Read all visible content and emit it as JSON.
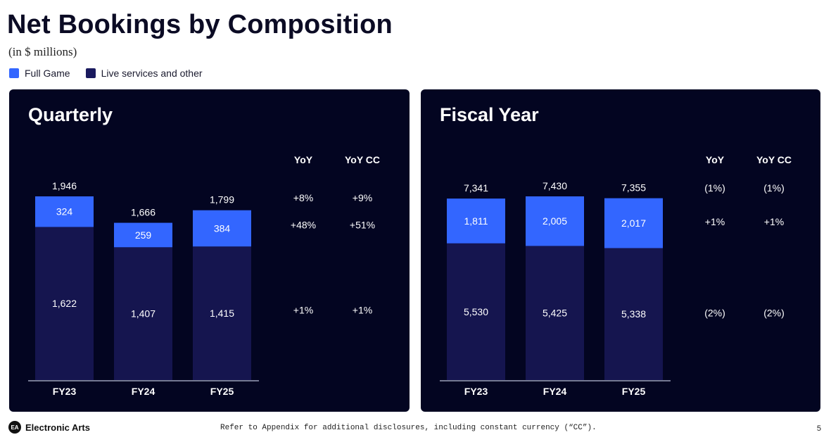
{
  "header": {
    "title": "Net Bookings by Composition",
    "subtitle": "(in $ millions)"
  },
  "legend": [
    {
      "label": "Full Game",
      "color": "#3366ff"
    },
    {
      "label": "Live services and other",
      "color": "#1a1a5e"
    }
  ],
  "colors": {
    "full_game": "#3366ff",
    "live_services": "#15154f",
    "panel_bg": "#030521",
    "text": "#ffffff"
  },
  "chart_data": [
    {
      "type": "bar",
      "stacked": true,
      "title": "Quarterly",
      "categories": [
        "FY23",
        "FY24",
        "FY25"
      ],
      "series": [
        {
          "name": "Live services and other",
          "values": [
            1622,
            1407,
            1415
          ],
          "labels": [
            "1,622",
            "1,407",
            "1,415"
          ]
        },
        {
          "name": "Full Game",
          "values": [
            324,
            259,
            384
          ],
          "labels": [
            "324",
            "259",
            "384"
          ]
        }
      ],
      "totals": [
        1946,
        1666,
        1799
      ],
      "total_labels": [
        "1,946",
        "1,666",
        "1,799"
      ],
      "ylim": [
        0,
        1946
      ],
      "yoy_header": "YoY",
      "yoycc_header": "YoY CC",
      "yoy": {
        "total": "+8%",
        "full_game": "+48%",
        "live_services": "+1%"
      },
      "yoycc": {
        "total": "+9%",
        "full_game": "+51%",
        "live_services": "+1%"
      }
    },
    {
      "type": "bar",
      "stacked": true,
      "title": "Fiscal Year",
      "categories": [
        "FY23",
        "FY24",
        "FY25"
      ],
      "series": [
        {
          "name": "Live services and other",
          "values": [
            5530,
            5425,
            5338
          ],
          "labels": [
            "5,530",
            "5,425",
            "5,338"
          ]
        },
        {
          "name": "Full Game",
          "values": [
            1811,
            2005,
            2017
          ],
          "labels": [
            "1,811",
            "2,005",
            "2,017"
          ]
        }
      ],
      "totals": [
        7341,
        7430,
        7355
      ],
      "total_labels": [
        "7,341",
        "7,430",
        "7,355"
      ],
      "ylim": [
        0,
        7430
      ],
      "yoy_header": "YoY",
      "yoycc_header": "YoY CC",
      "yoy": {
        "total": "(1%)",
        "full_game": "+1%",
        "live_services": "(2%)"
      },
      "yoycc": {
        "total": "(1%)",
        "full_game": "+1%",
        "live_services": "(2%)"
      }
    }
  ],
  "footer": {
    "logo_text": "Electronic Arts",
    "note": "Refer to Appendix for additional disclosures, including constant currency (“CC”).",
    "page_number": "5"
  }
}
